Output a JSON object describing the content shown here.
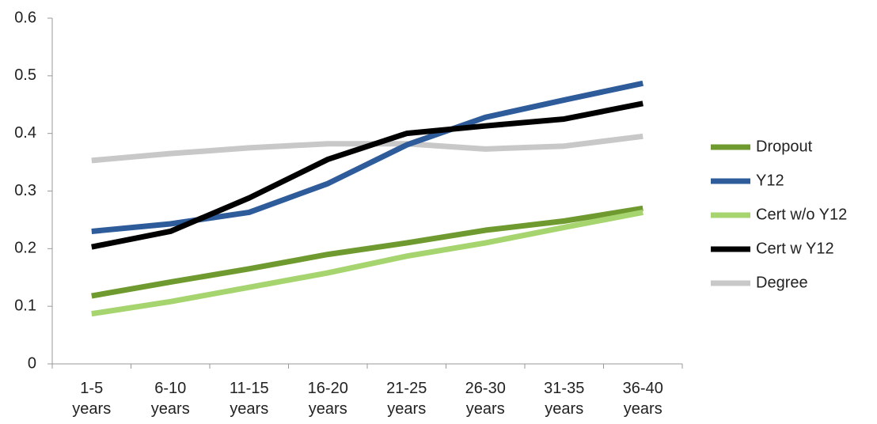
{
  "chart_data": {
    "type": "line",
    "categories": [
      "1-5 years",
      "6-10 years",
      "11-15 years",
      "16-20 years",
      "21-25 years",
      "26-30 years",
      "31-35 years",
      "36-40 years"
    ],
    "series": [
      {
        "name": "Dropout",
        "color": "#6f9a2f",
        "values": [
          0.118,
          0.142,
          0.165,
          0.19,
          0.21,
          0.232,
          0.248,
          0.27
        ]
      },
      {
        "name": "Y12",
        "color": "#2e5b9a",
        "values": [
          0.23,
          0.243,
          0.263,
          0.313,
          0.38,
          0.428,
          0.458,
          0.487
        ]
      },
      {
        "name": "Cert w/o Y12",
        "color": "#a6d46f",
        "values": [
          0.087,
          0.108,
          0.133,
          0.158,
          0.187,
          0.21,
          0.237,
          0.263
        ]
      },
      {
        "name": "Cert w Y12",
        "color": "#000000",
        "values": [
          0.203,
          0.23,
          0.288,
          0.355,
          0.4,
          0.413,
          0.425,
          0.452
        ]
      },
      {
        "name": "Degree",
        "color": "#c8c8c8",
        "values": [
          0.353,
          0.365,
          0.375,
          0.382,
          0.382,
          0.373,
          0.378,
          0.395
        ]
      }
    ],
    "ylim": [
      0,
      0.6
    ],
    "yticks": [
      0,
      0.1,
      0.2,
      0.3,
      0.4,
      0.5,
      0.6
    ],
    "grid": false,
    "legend": "right"
  }
}
